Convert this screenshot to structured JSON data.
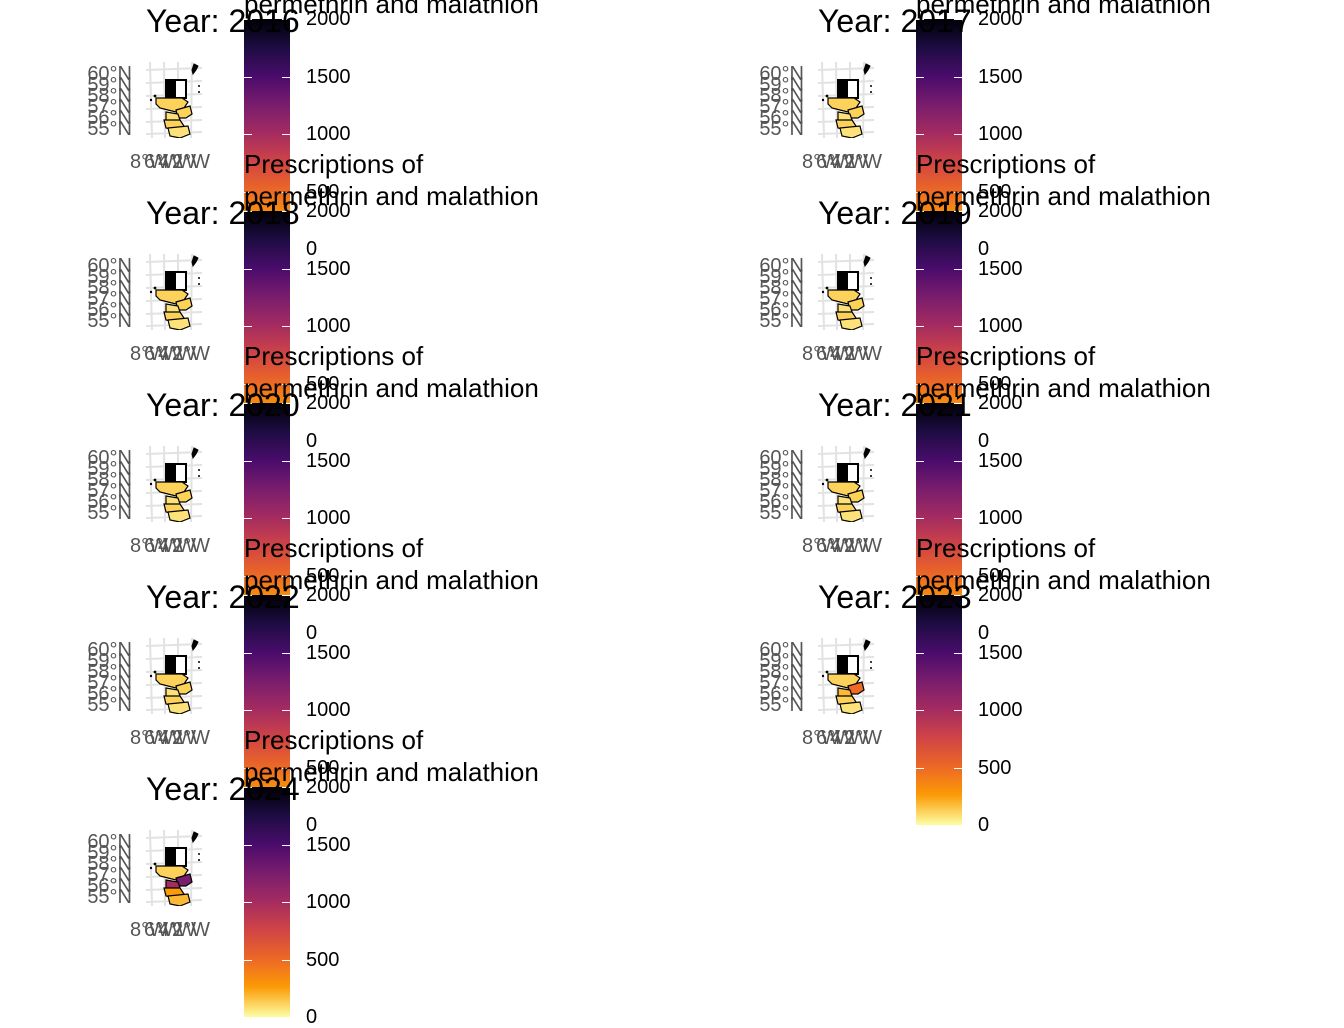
{
  "panels": [
    {
      "title": "Year: 2016",
      "fills": [
        "#fcd25a",
        "#fcd25a",
        "#fde27a",
        "#fcd25a",
        "#fde27a"
      ]
    },
    {
      "title": "Year: 2017",
      "fills": [
        "#fcd25a",
        "#fcd25a",
        "#fde27a",
        "#fcd25a",
        "#fde27a"
      ]
    },
    {
      "title": "Year: 2018",
      "fills": [
        "#fcd25a",
        "#fcd25a",
        "#fde27a",
        "#fcd25a",
        "#fde27a"
      ]
    },
    {
      "title": "Year: 2019",
      "fills": [
        "#fcd25a",
        "#fcd25a",
        "#fde27a",
        "#fcd25a",
        "#fde27a"
      ]
    },
    {
      "title": "Year: 2020",
      "fills": [
        "#fcd25a",
        "#fcd25a",
        "#fde27a",
        "#fcd25a",
        "#fde27a"
      ]
    },
    {
      "title": "Year: 2021",
      "fills": [
        "#fcd25a",
        "#fcd25a",
        "#fde27a",
        "#fcd25a",
        "#fde27a"
      ]
    },
    {
      "title": "Year: 2022",
      "fills": [
        "#fcd25a",
        "#fcd25a",
        "#fde27a",
        "#fcd25a",
        "#fde27a"
      ]
    },
    {
      "title": "Year: 2023",
      "fills": [
        "#fcd25a",
        "#ed6925",
        "#fcb935",
        "#fcd25a",
        "#fde27a"
      ]
    },
    {
      "title": "Year: 2024",
      "fills": [
        "#fcd25a",
        "#781c6d",
        "#a52c60",
        "#fb9b06",
        "#fcb935"
      ]
    }
  ],
  "legend": {
    "title_line1": "Prescriptions of",
    "title_line2": "permethrin and malathion",
    "ticks": [
      "2000",
      "1500",
      "1000",
      "500",
      "0"
    ],
    "palette": [
      "#000004",
      "#1b0c41",
      "#4a0c6b",
      "#781c6d",
      "#a52c60",
      "#cf4446",
      "#ed6925",
      "#fb9b06",
      "#fcffa4"
    ]
  },
  "axes": {
    "lat_labels": [
      "60°N",
      "59°N",
      "58°N",
      "57°N",
      "56°N",
      "55°N"
    ],
    "lon_labels": [
      "8°W",
      "6°W",
      "4°W",
      "2°W"
    ]
  }
}
